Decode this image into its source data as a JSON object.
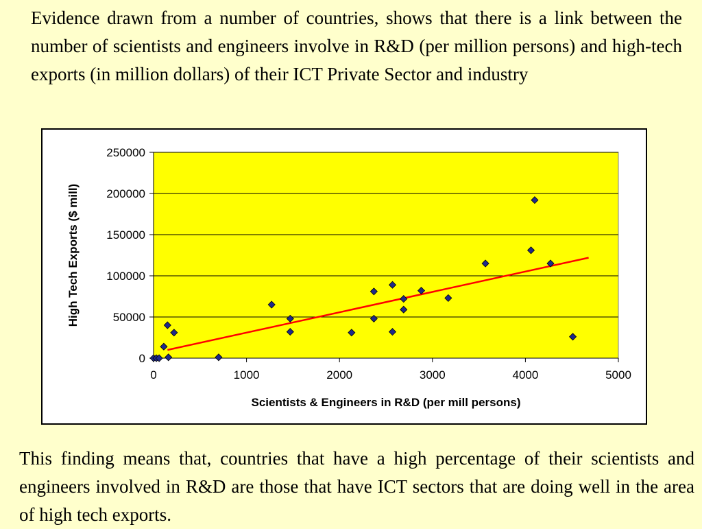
{
  "text": {
    "top_paragraph": "Evidence drawn from a number of countries, shows that there is  a link between the number of scientists and engineers involve in R&D (per million persons) and high-tech exports (in million dollars) of their ICT Private Sector and industry",
    "bottom_paragraph": "This finding means that, countries that have a high percentage of their scientists and engineers involved in R&D are those that have ICT sectors that are doing well in the area of high tech exports."
  },
  "colors": {
    "page_background": "#ffffcc",
    "plot_background": "#ffff00",
    "marker_fill": "#1f2a8a",
    "trendline": "#ff0000"
  },
  "chart_data": {
    "type": "scatter",
    "title": "",
    "xlabel": "Scientists & Engineers in R&D (per mill persons)",
    "ylabel": "High Tech Exports ($ mill)",
    "xlim": [
      0,
      5000
    ],
    "ylim": [
      0,
      250000
    ],
    "xticks": [
      0,
      1000,
      2000,
      3000,
      4000,
      5000
    ],
    "yticks": [
      0,
      50000,
      100000,
      150000,
      200000,
      250000
    ],
    "grid": "horizontal",
    "points": [
      {
        "x": 0,
        "y": 0
      },
      {
        "x": 30,
        "y": 0
      },
      {
        "x": 60,
        "y": 0
      },
      {
        "x": 110,
        "y": 14000
      },
      {
        "x": 150,
        "y": 40000
      },
      {
        "x": 160,
        "y": 1000
      },
      {
        "x": 220,
        "y": 31000
      },
      {
        "x": 700,
        "y": 1000
      },
      {
        "x": 1270,
        "y": 65000
      },
      {
        "x": 1470,
        "y": 48000
      },
      {
        "x": 1470,
        "y": 32000
      },
      {
        "x": 2130,
        "y": 31000
      },
      {
        "x": 2370,
        "y": 81000
      },
      {
        "x": 2370,
        "y": 48000
      },
      {
        "x": 2570,
        "y": 89000
      },
      {
        "x": 2570,
        "y": 32000
      },
      {
        "x": 2690,
        "y": 72000
      },
      {
        "x": 2690,
        "y": 59000
      },
      {
        "x": 2880,
        "y": 82000
      },
      {
        "x": 3170,
        "y": 73000
      },
      {
        "x": 3570,
        "y": 115000
      },
      {
        "x": 4060,
        "y": 131000
      },
      {
        "x": 4100,
        "y": 192000
      },
      {
        "x": 4270,
        "y": 115000
      },
      {
        "x": 4510,
        "y": 26000
      }
    ],
    "trendline": {
      "x": [
        150,
        4680
      ],
      "y": [
        10000,
        122000
      ]
    }
  }
}
